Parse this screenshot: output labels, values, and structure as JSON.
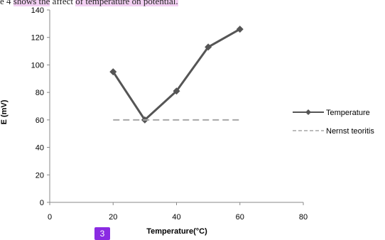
{
  "caption": {
    "prefix": "e 4 ",
    "highlight1": "shows the",
    "middle": " affect ",
    "highlight2": "of temperature  on potential."
  },
  "badge_label": "3",
  "chart_data": {
    "type": "line",
    "xlabel": "Temperature(°C)",
    "ylabel": "E (mV)",
    "xlim": [
      0,
      80
    ],
    "ylim": [
      0,
      140
    ],
    "x_ticks": [
      "0",
      "20",
      "40",
      "60",
      "80"
    ],
    "y_ticks": [
      "0",
      "20",
      "40",
      "60",
      "80",
      "100",
      "120",
      "140"
    ],
    "grid": false,
    "legend_position": "right",
    "series": [
      {
        "name": "Temperature",
        "x": [
          20,
          30,
          40,
          50,
          60
        ],
        "values": [
          95,
          60,
          81,
          113,
          126
        ],
        "color": "#555555",
        "style": "solid",
        "marker": "diamond"
      },
      {
        "name": "Nernst teoritis",
        "x": [
          20,
          60
        ],
        "values": [
          60,
          60
        ],
        "color": "#a6a6a6",
        "style": "dashed",
        "marker": "none"
      }
    ]
  }
}
